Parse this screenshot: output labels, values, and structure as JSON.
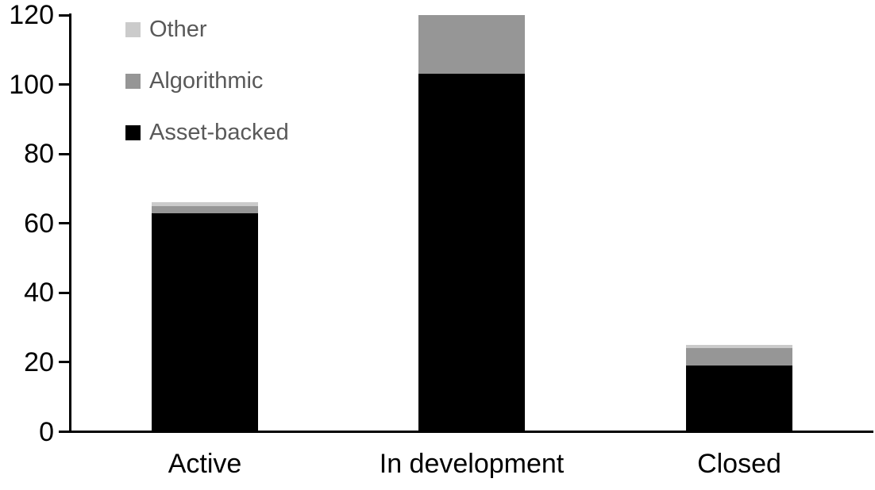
{
  "chart_data": {
    "type": "bar",
    "stacked": true,
    "title": "",
    "xlabel": "",
    "ylabel": "",
    "categories": [
      "Active",
      "In development",
      "Closed"
    ],
    "series": [
      {
        "name": "Asset-backed",
        "color": "#000000",
        "values": [
          63,
          103,
          19
        ]
      },
      {
        "name": "Algorithmic",
        "color": "#969696",
        "values": [
          2,
          17,
          5
        ]
      },
      {
        "name": "Other",
        "color": "#cbcbcb",
        "values": [
          1,
          0,
          1
        ]
      }
    ],
    "ylim": [
      0,
      120
    ],
    "yticks": [
      0,
      20,
      40,
      60,
      80,
      100,
      120
    ],
    "grid": false,
    "axis_color": "#000000",
    "tick_label_color": "#000000",
    "legend": {
      "position": "top-left",
      "text_color": "#595959",
      "entries": [
        {
          "label": "Other",
          "color": "#cbcbcb"
        },
        {
          "label": "Algorithmic",
          "color": "#969696"
        },
        {
          "label": "Asset-backed",
          "color": "#000000"
        }
      ]
    }
  }
}
